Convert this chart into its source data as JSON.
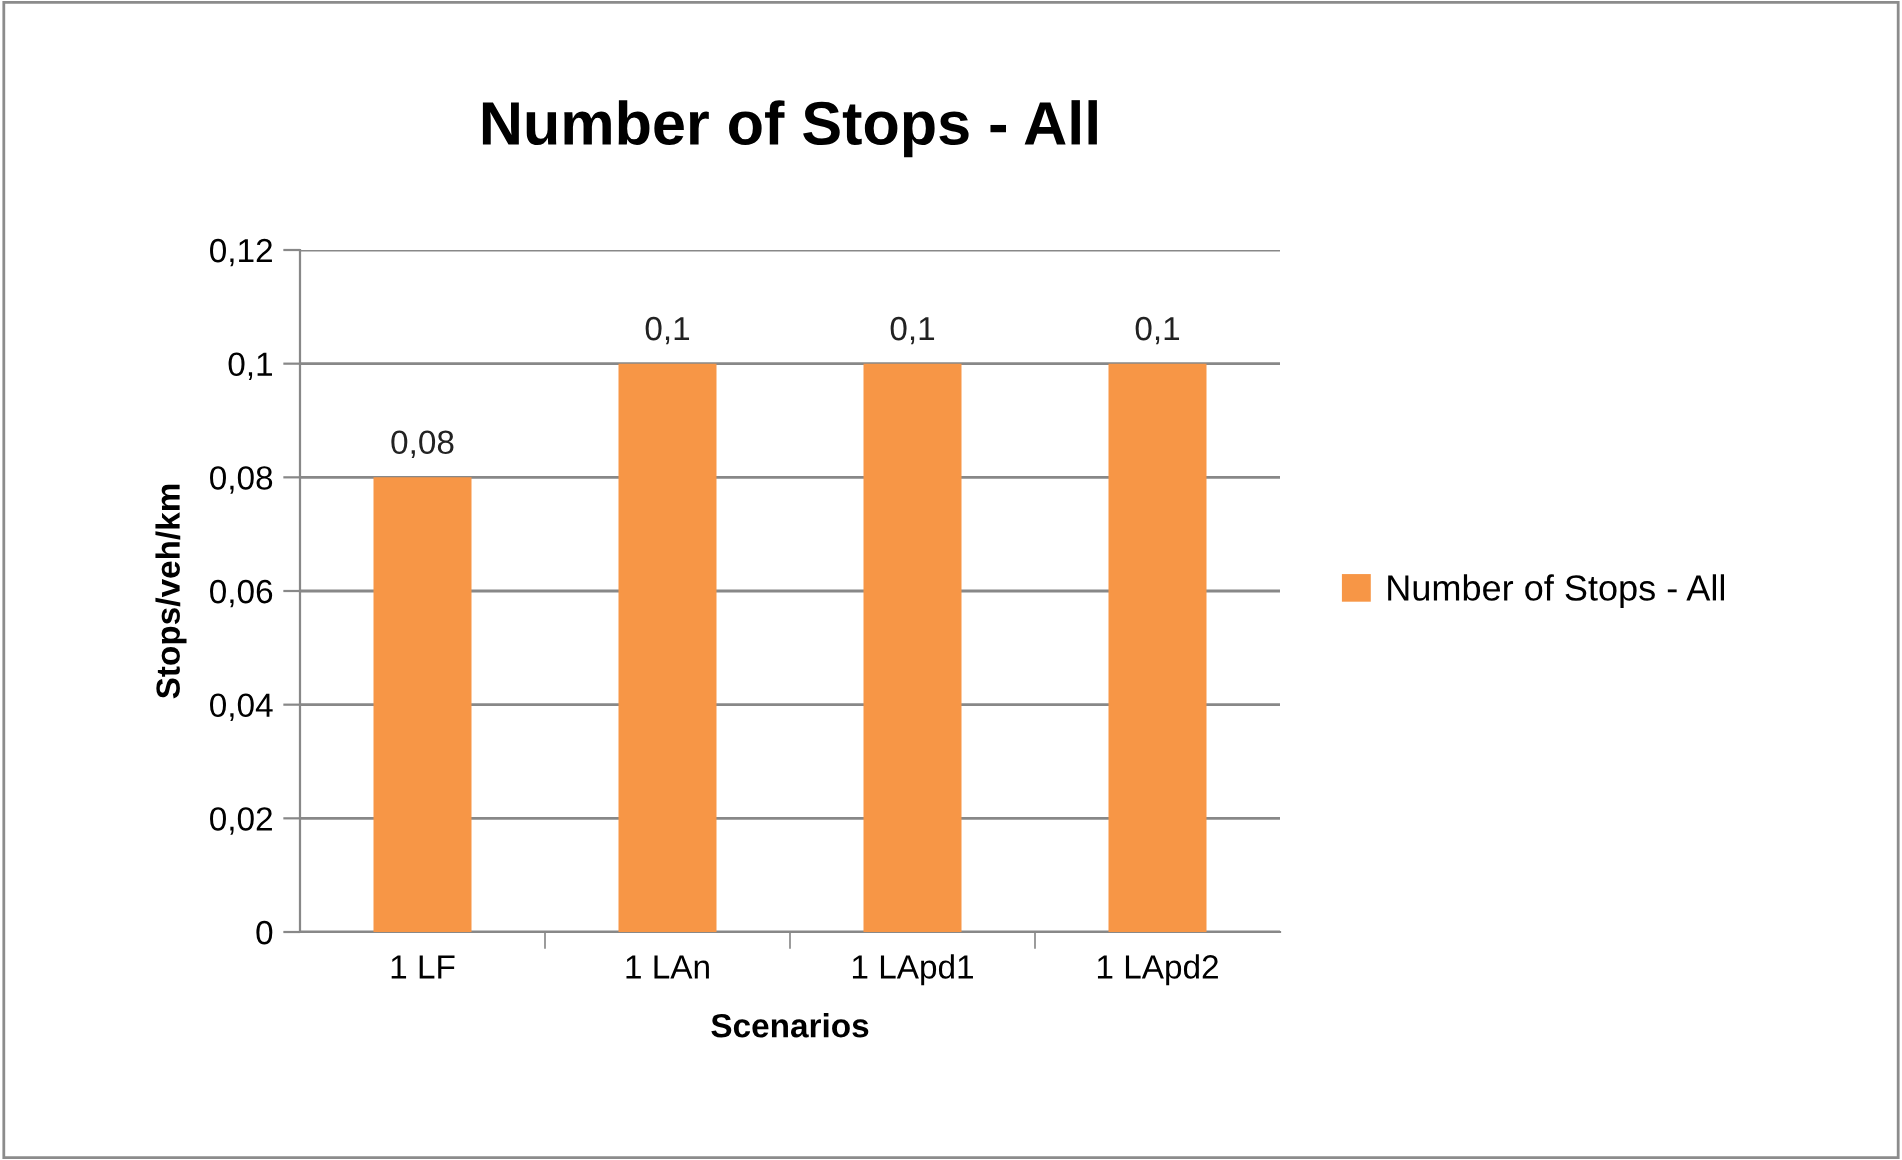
{
  "chart_data": {
    "type": "bar",
    "title": "Number of Stops - All",
    "xlabel": "Scenarios",
    "ylabel": "Stops/veh/km",
    "categories": [
      "1 LF",
      "1 LAn",
      "1 LApd1",
      "1 LApd2"
    ],
    "series": [
      {
        "name": "Number of Stops - All",
        "color": "#f79646",
        "values": [
          0.08,
          0.1,
          0.1,
          0.1
        ],
        "value_labels": [
          "0,08",
          "0,1",
          "0,1",
          "0,1"
        ]
      }
    ],
    "ylim": [
      0,
      0.12
    ],
    "yticks": [
      {
        "value": 0,
        "label": "0"
      },
      {
        "value": 0.02,
        "label": "0,02"
      },
      {
        "value": 0.04,
        "label": "0,04"
      },
      {
        "value": 0.06,
        "label": "0,06"
      },
      {
        "value": 0.08,
        "label": "0,08"
      },
      {
        "value": 0.1,
        "label": "0,1"
      },
      {
        "value": 0.12,
        "label": "0,12"
      }
    ],
    "grid": "y",
    "legend": "right"
  }
}
